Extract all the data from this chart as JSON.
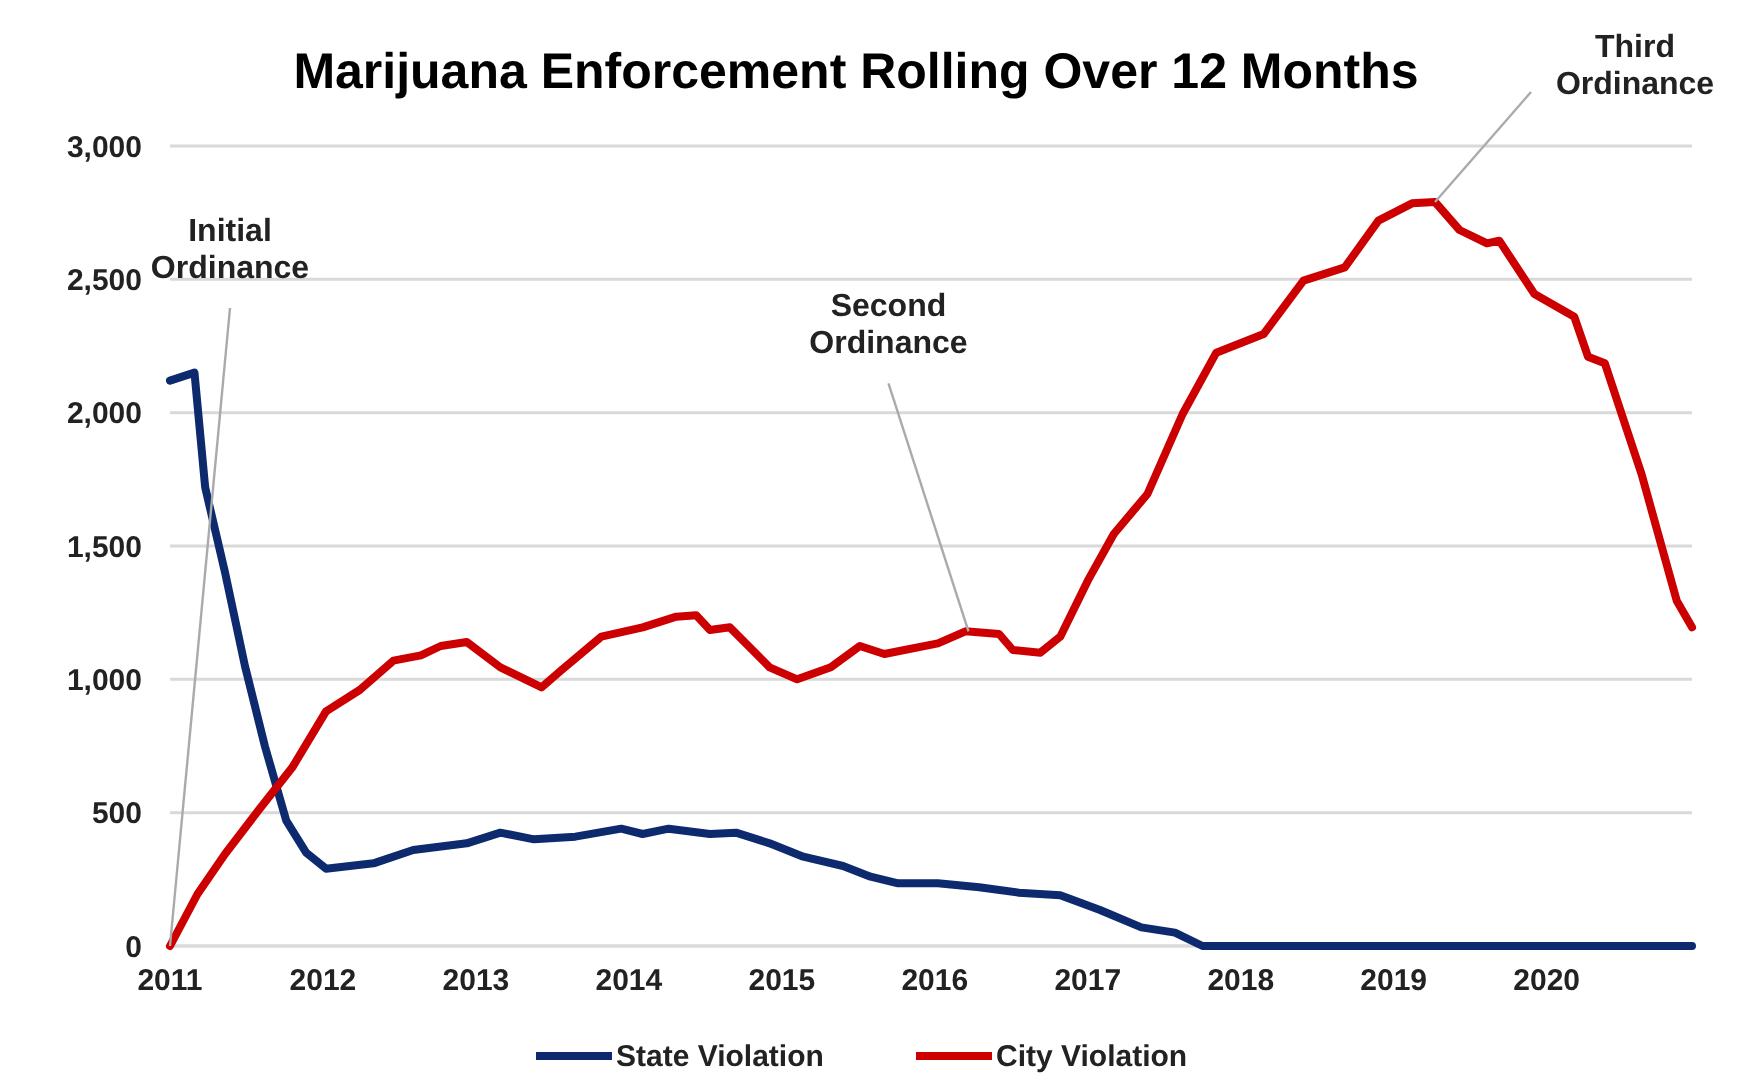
{
  "chart_data": {
    "type": "line",
    "title": "Marijuana Enforcement Rolling Over 12 Months",
    "xlim": [
      2011,
      2020.95
    ],
    "xticks": [
      2011,
      2012,
      2013,
      2014,
      2015,
      2016,
      2017,
      2018,
      2019,
      2020
    ],
    "ylim": [
      0,
      3000
    ],
    "yticks": [
      0,
      {
        "value": 500,
        "label": "500"
      },
      {
        "value": 1000,
        "label": "1,000"
      },
      {
        "value": 1500,
        "label": "1,500"
      },
      {
        "value": 2000,
        "label": "2,000"
      },
      {
        "value": 2500,
        "label": "2,500"
      },
      {
        "value": 3000,
        "label": "3,000"
      }
    ],
    "grid": "y",
    "legend": "bottom",
    "marker": "none",
    "line_style": "solid",
    "series": [
      {
        "name": "State Violation",
        "color": "#0d2a6e",
        "x": [
          2011.0,
          2011.16,
          2011.23,
          2011.36,
          2011.49,
          2011.62,
          2011.76,
          2011.89,
          2012.02,
          2012.33,
          2012.59,
          2012.94,
          2013.16,
          2013.38,
          2013.65,
          2013.95,
          2014.09,
          2014.26,
          2014.53,
          2014.7,
          2014.92,
          2015.14,
          2015.4,
          2015.58,
          2015.76,
          2016.02,
          2016.29,
          2016.55,
          2016.82,
          2017.08,
          2017.35,
          2017.57,
          2017.75,
          2020.95
        ],
        "values": [
          2120,
          2150,
          1720,
          1400,
          1050,
          750,
          470,
          350,
          290,
          310,
          360,
          385,
          425,
          400,
          410,
          440,
          420,
          440,
          420,
          425,
          385,
          335,
          300,
          260,
          235,
          235,
          220,
          200,
          190,
          135,
          70,
          50,
          0,
          0
        ]
      },
      {
        "name": "City Violation",
        "color": "#cc0000",
        "x": [
          2011.0,
          2011.18,
          2011.36,
          2011.58,
          2011.8,
          2012.02,
          2012.24,
          2012.46,
          2012.64,
          2012.77,
          2012.94,
          2013.16,
          2013.43,
          2013.56,
          2013.82,
          2014.09,
          2014.31,
          2014.44,
          2014.53,
          2014.66,
          2014.92,
          2015.1,
          2015.32,
          2015.51,
          2015.67,
          2016.02,
          2016.2,
          2016.42,
          2016.51,
          2016.69,
          2016.82,
          2017.0,
          2017.17,
          2017.39,
          2017.62,
          2017.84,
          2018.15,
          2018.41,
          2018.68,
          2018.9,
          2019.12,
          2019.27,
          2019.43,
          2019.61,
          2019.69,
          2019.92,
          2020.18,
          2020.27,
          2020.38,
          2020.62,
          2020.85,
          2020.95
        ],
        "values": [
          0,
          195,
          345,
          510,
          670,
          880,
          960,
          1070,
          1090,
          1125,
          1140,
          1045,
          970,
          1035,
          1160,
          1195,
          1235,
          1240,
          1185,
          1195,
          1045,
          1000,
          1045,
          1125,
          1095,
          1135,
          1180,
          1170,
          1110,
          1100,
          1160,
          1370,
          1545,
          1695,
          1995,
          2225,
          2295,
          2495,
          2545,
          2720,
          2785,
          2790,
          2685,
          2635,
          2645,
          2445,
          2360,
          2210,
          2185,
          1770,
          1295,
          1195
        ]
      }
    ],
    "annotations": [
      {
        "text": "Initial Ordinance",
        "x": 2011.0,
        "y": 0
      },
      {
        "text": "Second Ordinance",
        "x": 2016.22,
        "y": 1180
      },
      {
        "text": "Third Ordinance",
        "x": 2019.27,
        "y": 2790
      }
    ]
  }
}
